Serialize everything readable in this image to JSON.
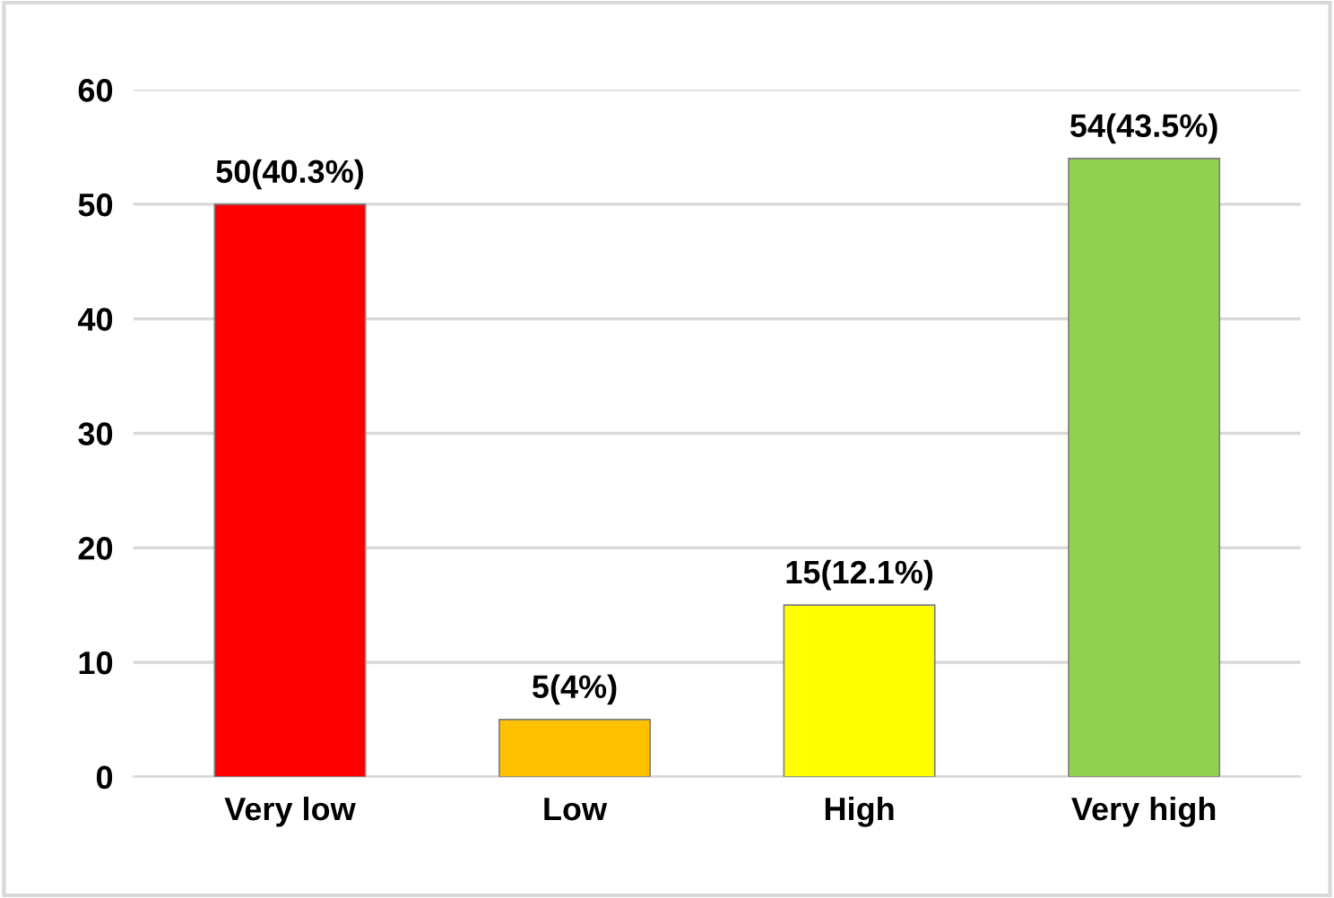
{
  "chart_data": {
    "type": "bar",
    "categories": [
      "Very low",
      "Low",
      "High",
      "Very high"
    ],
    "values": [
      50,
      5,
      15,
      54
    ],
    "colors": [
      "#ff0000",
      "#ffc000",
      "#ffff00",
      "#92d050"
    ],
    "value_labels": [
      "50(40.3%)",
      "5(4%)",
      "15(12.1%)",
      "54(43.5%)"
    ],
    "ylim": [
      0,
      60
    ],
    "yticks": [
      0,
      10,
      20,
      30,
      40,
      50,
      60
    ],
    "grid": "y",
    "legend": false
  }
}
